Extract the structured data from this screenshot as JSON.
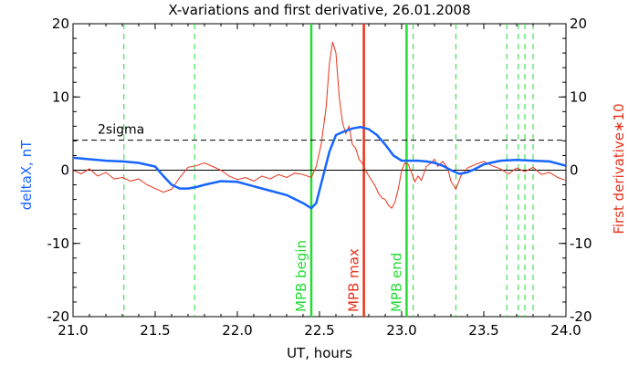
{
  "chart_data": {
    "type": "line",
    "title": "X-variations and first derivative, 26.01.2008",
    "xlabel": "UT, hours",
    "ylabel_left": "deltaX, nT",
    "ylabel_right": "First derivative∗10",
    "xlim": [
      21.0,
      24.0
    ],
    "ylim": [
      -20,
      20
    ],
    "x_ticks": [
      "21.0",
      "21.5",
      "22.0",
      "22.5",
      "23.0",
      "23.5",
      "24.0"
    ],
    "y_ticks": [
      "-20",
      "-10",
      "0",
      "10",
      "20"
    ],
    "colors": {
      "deltaX": "#1565ff",
      "derivative": "#e8321a",
      "markers": "#22dd33",
      "threshold": "#000000"
    },
    "threshold": {
      "label": "2sigma",
      "y": 4.1
    },
    "solid_lines": [
      {
        "label": "MPB begin",
        "x": 22.45,
        "color": "#22dd33"
      },
      {
        "label": "MPB max",
        "x": 22.77,
        "color": "#e8321a"
      },
      {
        "label": "MPB end",
        "x": 23.03,
        "color": "#22dd33"
      }
    ],
    "dashed_lines": [
      21.31,
      21.74,
      23.07,
      23.33,
      23.64,
      23.71,
      23.75,
      23.8
    ],
    "series": [
      {
        "name": "deltaX",
        "x": [
          21.0,
          21.1,
          21.2,
          21.3,
          21.4,
          21.5,
          21.55,
          21.6,
          21.65,
          21.7,
          21.75,
          21.8,
          21.9,
          22.0,
          22.1,
          22.2,
          22.3,
          22.4,
          22.45,
          22.48,
          22.52,
          22.56,
          22.6,
          22.65,
          22.7,
          22.75,
          22.8,
          22.85,
          22.9,
          22.95,
          23.0,
          23.05,
          23.1,
          23.15,
          23.2,
          23.25,
          23.3,
          23.35,
          23.4,
          23.45,
          23.5,
          23.6,
          23.7,
          23.8,
          23.9,
          24.0
        ],
        "y": [
          1.7,
          1.5,
          1.3,
          1.2,
          1.0,
          0.5,
          -0.8,
          -2.0,
          -2.5,
          -2.5,
          -2.3,
          -2.0,
          -1.5,
          -1.6,
          -2.2,
          -2.8,
          -3.4,
          -4.5,
          -5.2,
          -4.5,
          -1.0,
          2.5,
          4.8,
          5.3,
          5.7,
          5.9,
          5.6,
          4.8,
          3.5,
          2.0,
          1.3,
          1.3,
          1.3,
          1.2,
          1.0,
          0.6,
          0.0,
          -0.5,
          -0.3,
          0.2,
          0.8,
          1.3,
          1.4,
          1.3,
          1.2,
          0.6
        ]
      },
      {
        "name": "derivative",
        "x": [
          21.0,
          21.05,
          21.1,
          21.15,
          21.2,
          21.25,
          21.3,
          21.35,
          21.4,
          21.45,
          21.5,
          21.55,
          21.6,
          21.65,
          21.7,
          21.75,
          21.8,
          21.85,
          21.9,
          21.95,
          22.0,
          22.05,
          22.1,
          22.15,
          22.2,
          22.25,
          22.3,
          22.35,
          22.4,
          22.45,
          22.48,
          22.51,
          22.54,
          22.56,
          22.58,
          22.6,
          22.62,
          22.64,
          22.66,
          22.68,
          22.7,
          22.72,
          22.74,
          22.76,
          22.78,
          22.8,
          22.82,
          22.84,
          22.86,
          22.88,
          22.9,
          22.92,
          22.94,
          22.96,
          22.98,
          23.0,
          23.02,
          23.04,
          23.06,
          23.08,
          23.1,
          23.12,
          23.15,
          23.18,
          23.2,
          23.22,
          23.25,
          23.28,
          23.3,
          23.33,
          23.36,
          23.4,
          23.45,
          23.5,
          23.55,
          23.6,
          23.65,
          23.7,
          23.75,
          23.8,
          23.85,
          23.9,
          23.95,
          24.0
        ],
        "y": [
          0.0,
          -0.5,
          0.2,
          -0.8,
          -0.3,
          -1.2,
          -1.0,
          -1.5,
          -1.2,
          -2.0,
          -2.5,
          -3.0,
          -2.6,
          -1.0,
          0.4,
          0.6,
          1.0,
          0.5,
          0.0,
          -0.8,
          -1.3,
          -1.0,
          -1.5,
          -0.8,
          -1.2,
          -0.6,
          -1.0,
          -0.4,
          -0.6,
          -1.0,
          0.5,
          3.5,
          8.5,
          14.5,
          17.5,
          16.0,
          10.0,
          6.5,
          5.0,
          6.0,
          3.5,
          3.0,
          1.5,
          1.0,
          0.0,
          -0.8,
          -1.5,
          -2.2,
          -3.2,
          -3.8,
          -4.0,
          -4.8,
          -5.2,
          -4.3,
          -2.5,
          0.0,
          1.0,
          0.8,
          -0.3,
          -1.6,
          -0.8,
          -1.4,
          0.5,
          1.0,
          1.5,
          0.5,
          1.2,
          0.3,
          -1.5,
          -2.6,
          -0.8,
          0.3,
          0.8,
          1.2,
          0.6,
          0.2,
          -0.5,
          0.3,
          -0.2,
          0.4,
          -0.6,
          -0.3,
          -1.0,
          -1.4
        ]
      }
    ]
  }
}
